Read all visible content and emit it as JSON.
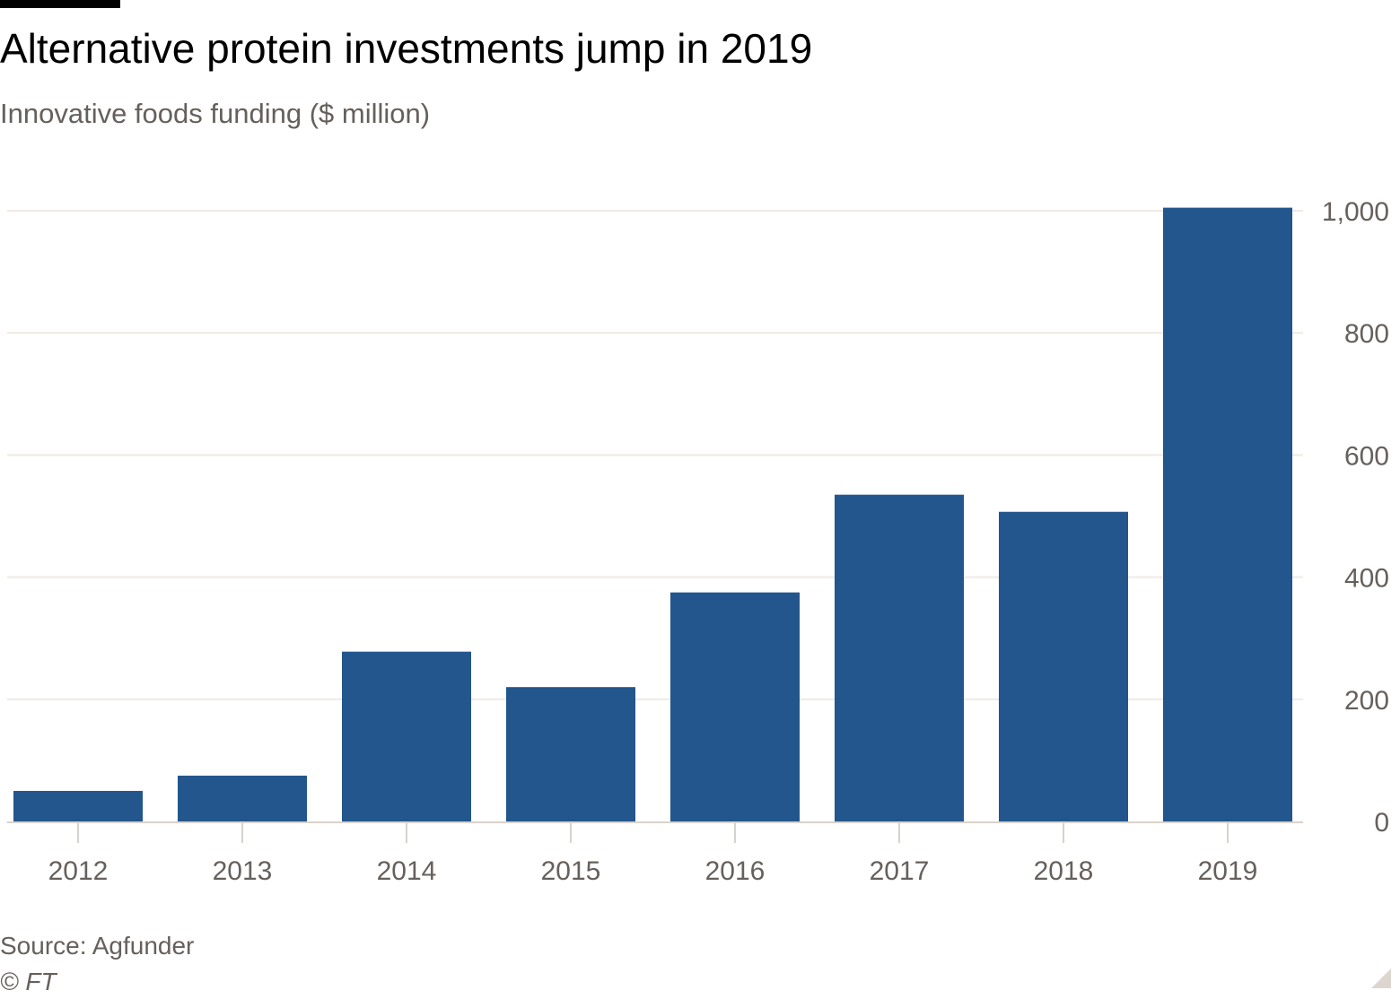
{
  "title": "Alternative protein investments jump in 2019",
  "subtitle": "Innovative foods funding ($ million)",
  "source": "Source: Agfunder",
  "copyright": "© FT",
  "colors": {
    "bar": "#22568c",
    "grid": "#efe9e5",
    "axis_text": "#66605c",
    "baseline": "#d9d2cc"
  },
  "chart_data": {
    "type": "bar",
    "categories": [
      "2012",
      "2013",
      "2014",
      "2015",
      "2016",
      "2017",
      "2018",
      "2019"
    ],
    "values": [
      50,
      75,
      278,
      220,
      375,
      535,
      507,
      1005
    ],
    "ylim": [
      0,
      1000
    ],
    "yticks": [
      0,
      200,
      400,
      600,
      800,
      1000
    ],
    "ytick_labels": [
      "0",
      "200",
      "400",
      "600",
      "800",
      "1,000"
    ],
    "xlabel": "",
    "ylabel": "",
    "grid": true,
    "y_axis_side": "right"
  }
}
